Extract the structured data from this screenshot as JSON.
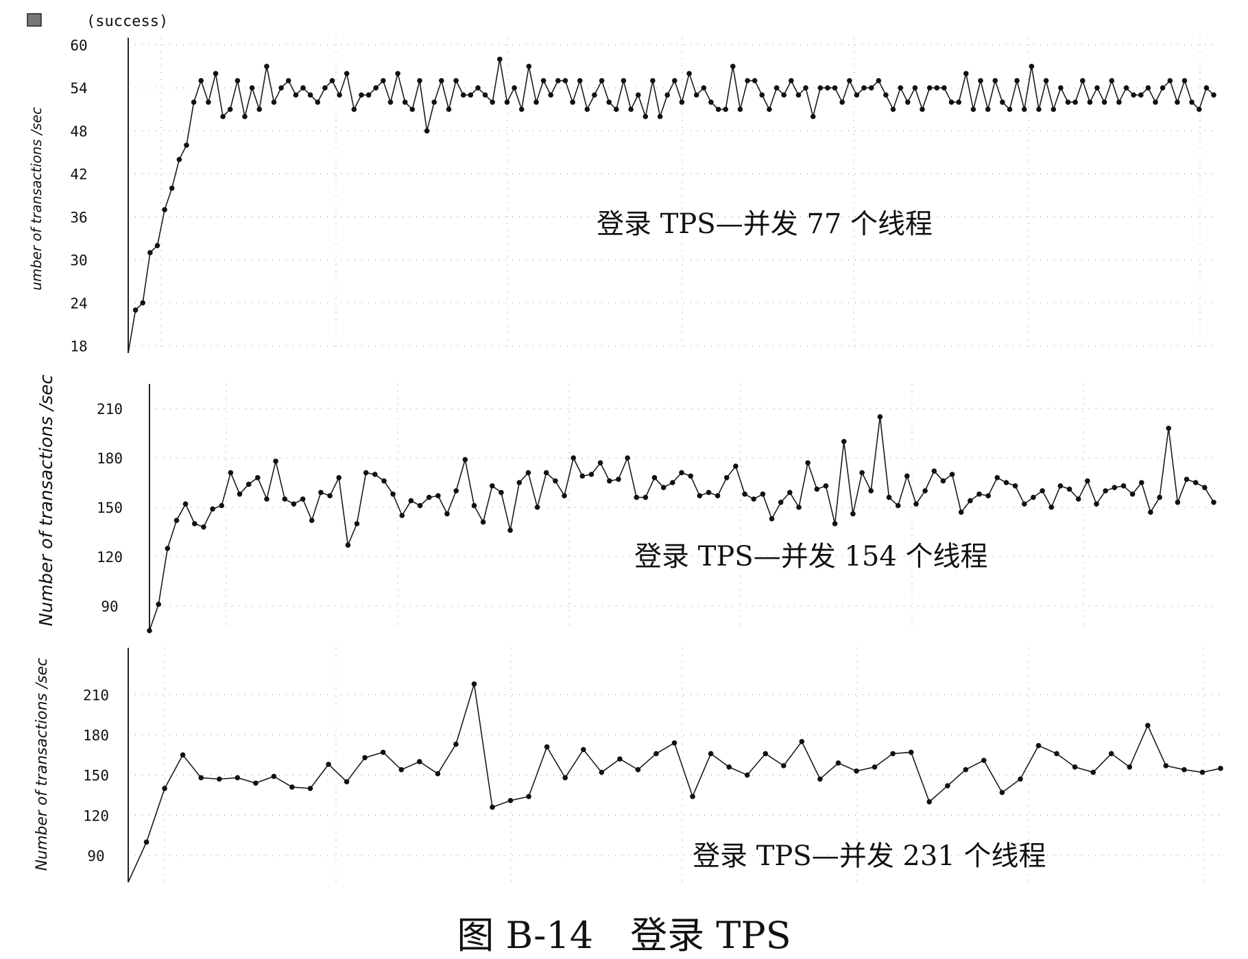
{
  "caption": "图 B-14　登录 TPS",
  "chart_data": [
    {
      "type": "line",
      "legend": {
        "label": "(success)",
        "placement": "top-left"
      },
      "annotation": "登录 TPS—并发 77 个线程",
      "ylabel": "umber of transactions /sec",
      "ylim": [
        17,
        61
      ],
      "yticks": [
        18,
        24,
        30,
        36,
        42,
        48,
        54,
        60
      ],
      "grid": true,
      "series": [
        {
          "values": [
            14,
            23,
            24,
            31,
            32,
            37,
            40,
            44,
            46,
            52,
            55,
            52,
            56,
            50,
            51,
            55,
            50,
            54,
            51,
            57,
            52,
            54,
            55,
            53,
            54,
            53,
            52,
            54,
            55,
            53,
            56,
            51,
            53,
            53,
            54,
            55,
            52,
            56,
            52,
            51,
            55,
            48,
            52,
            55,
            51,
            55,
            53,
            53,
            54,
            53,
            52,
            58,
            52,
            54,
            51,
            57,
            52,
            55,
            53,
            55,
            55,
            52,
            55,
            51,
            53,
            55,
            52,
            51,
            55,
            51,
            53,
            50,
            55,
            50,
            53,
            55,
            52,
            56,
            53,
            54,
            52,
            51,
            51,
            57,
            51,
            55,
            55,
            53,
            51,
            54,
            53,
            55,
            53,
            54,
            50,
            54,
            54,
            54,
            52,
            55,
            53,
            54,
            54,
            55,
            53,
            51,
            54,
            52,
            54,
            51,
            54,
            54,
            54,
            52,
            52,
            56,
            51,
            55,
            51,
            55,
            52,
            51,
            55,
            51,
            57,
            51,
            55,
            51,
            54,
            52,
            52,
            55,
            52,
            54,
            52,
            55,
            52,
            54,
            53,
            53,
            54,
            52,
            54,
            55,
            52,
            55,
            52,
            51,
            54,
            53
          ]
        }
      ]
    },
    {
      "type": "line",
      "annotation": "登录 TPS—并发 154 个线程",
      "ylabel": "Number of transactions /sec",
      "ylim": [
        75,
        225
      ],
      "yticks": [
        90,
        120,
        150,
        180,
        210
      ],
      "grid": true,
      "series": [
        {
          "values": [
            75,
            91,
            125,
            142,
            152,
            140,
            138,
            149,
            151,
            171,
            158,
            164,
            168,
            155,
            178,
            155,
            152,
            155,
            142,
            159,
            157,
            168,
            127,
            140,
            171,
            170,
            166,
            158,
            145,
            154,
            151,
            156,
            157,
            146,
            160,
            179,
            151,
            141,
            163,
            159,
            136,
            165,
            171,
            150,
            171,
            166,
            157,
            180,
            169,
            170,
            177,
            166,
            167,
            180,
            156,
            156,
            168,
            162,
            165,
            171,
            169,
            157,
            159,
            157,
            168,
            175,
            158,
            155,
            158,
            143,
            153,
            159,
            150,
            177,
            161,
            163,
            140,
            190,
            146,
            171,
            160,
            205,
            156,
            151,
            169,
            152,
            160,
            172,
            166,
            170,
            147,
            154,
            158,
            157,
            168,
            165,
            163,
            152,
            156,
            160,
            150,
            163,
            161,
            155,
            166,
            152,
            160,
            162,
            163,
            158,
            165,
            147,
            156,
            198,
            153,
            167,
            165,
            162,
            153
          ]
        }
      ]
    },
    {
      "type": "line",
      "ylabel": "Number of transactions /sec",
      "ylim": [
        70,
        245
      ],
      "yticks": [
        90,
        120,
        150,
        180,
        210
      ],
      "annotation": "登录 TPS—并发 231 个线程",
      "grid": true,
      "series": [
        {
          "values": [
            65,
            100,
            140,
            165,
            148,
            147,
            148,
            144,
            149,
            141,
            140,
            158,
            145,
            163,
            167,
            154,
            160,
            151,
            173,
            218,
            126,
            131,
            134,
            171,
            148,
            169,
            152,
            162,
            154,
            166,
            174,
            134,
            166,
            156,
            150,
            166,
            157,
            175,
            147,
            159,
            153,
            156,
            166,
            167,
            130,
            142,
            154,
            161,
            137,
            147,
            172,
            166,
            156,
            152,
            166,
            156,
            187,
            157,
            154,
            152,
            155
          ]
        }
      ]
    }
  ]
}
